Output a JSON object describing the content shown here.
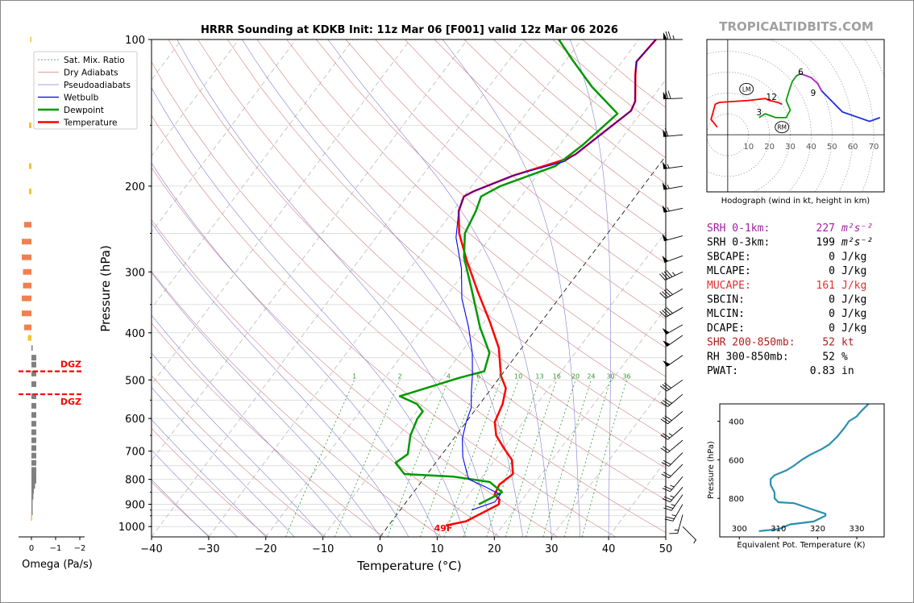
{
  "watermark": "TROPICALTIDBITS.COM",
  "skewt": {
    "title": "HRRR Sounding at KDKB Init: 11z Mar 06 [F001] valid 12z Mar 06 2026",
    "xlabel": "Temperature (°C)",
    "ylabel": "Pressure (hPa)",
    "x_ticks": [
      "−40",
      "−30",
      "−20",
      "−10",
      "0",
      "10",
      "20",
      "30",
      "40",
      "50"
    ],
    "y_ticks": [
      "100",
      "200",
      "300",
      "400",
      "500",
      "600",
      "700",
      "800",
      "900",
      "1000"
    ],
    "surface_label": "49F",
    "mixing_ratio_labels": [
      "1",
      "2",
      "4",
      "6",
      "8",
      "10",
      "13",
      "16",
      "20",
      "24",
      "30",
      "36"
    ],
    "legend": [
      "Sat. Mix. Ratio",
      "Dry Adiabats",
      "Pseudoadiabats",
      "Wetbulb",
      "Dewpoint",
      "Temperature"
    ]
  },
  "colors": {
    "temperature": "#ff0000",
    "dewpoint": "#009900",
    "wetbulb": "#0000ee",
    "dry_adiabat": "#d08080",
    "pseudoadiabat": "#8080d0",
    "mixing_ratio": "#2c9a2c",
    "theta_e": "#2b8fb0",
    "omega_positive": "#f4c430",
    "omega_orange": "#f08050",
    "omega_negative": "#808080",
    "srh1": "#a020a0",
    "mucape": "#e03030",
    "shr": "#b02020"
  },
  "chart_data": [
    {
      "type": "line",
      "title": "HRRR Sounding at KDKB Init: 11z Mar 06 [F001] valid 12z Mar 06 2026",
      "xlabel": "Temperature (°C)",
      "ylabel": "Pressure (hPa)",
      "xlim": [
        -40,
        50
      ],
      "ylim": [
        1050,
        100
      ],
      "yscale": "log",
      "series": [
        {
          "name": "Temperature",
          "points": [
            [
              10,
              995
            ],
            [
              13,
              975
            ],
            [
              16.5,
              900
            ],
            [
              16,
              880
            ],
            [
              14.5,
              860
            ],
            [
              14,
              820
            ],
            [
              15,
              780
            ],
            [
              13,
              730
            ],
            [
              10,
              690
            ],
            [
              7,
              650
            ],
            [
              5,
              610
            ],
            [
              4,
              560
            ],
            [
              2.5,
              520
            ],
            [
              0,
              490
            ],
            [
              -4,
              430
            ],
            [
              -9,
              380
            ],
            [
              -15,
              330
            ],
            [
              -21,
              285
            ],
            [
              -26,
              250
            ],
            [
              -29,
              225
            ],
            [
              -30,
              210
            ],
            [
              -29,
              205
            ],
            [
              -24,
              190
            ],
            [
              -17,
              176
            ],
            [
              -16,
              172
            ],
            [
              -12,
              140
            ],
            [
              -12.5,
              134
            ],
            [
              -16,
              118
            ],
            [
              -17.5,
              111
            ],
            [
              -17,
              100
            ]
          ]
        },
        {
          "name": "Dewpoint",
          "points": [
            [
              13,
              900
            ],
            [
              14.5,
              870
            ],
            [
              15.5,
              850
            ],
            [
              12,
              810
            ],
            [
              5,
              790
            ],
            [
              -4,
              780
            ],
            [
              -7,
              740
            ],
            [
              -6,
              710
            ],
            [
              -8,
              650
            ],
            [
              -9,
              600
            ],
            [
              -9,
              580
            ],
            [
              -11,
              560
            ],
            [
              -15,
              540
            ],
            [
              -7,
              495
            ],
            [
              -3.5,
              480
            ],
            [
              -5,
              440
            ],
            [
              -10,
              390
            ],
            [
              -16,
              330
            ],
            [
              -22,
              280
            ],
            [
              -25,
              250
            ],
            [
              -26,
              225
            ],
            [
              -27,
              210
            ],
            [
              -25,
              200
            ],
            [
              -18,
              182
            ],
            [
              -16,
              165
            ],
            [
              -14,
              142
            ],
            [
              -22,
              125
            ],
            [
              -29,
              110
            ],
            [
              -34,
              100
            ]
          ]
        },
        {
          "name": "Wetbulb",
          "points": [
            [
              12.5,
              925
            ],
            [
              15.5,
              890
            ],
            [
              15.5,
              860
            ],
            [
              12,
              830
            ],
            [
              8,
              800
            ],
            [
              7,
              780
            ],
            [
              4,
              720
            ],
            [
              1.5,
              660
            ],
            [
              0,
              610
            ],
            [
              -1,
              570
            ],
            [
              -3,
              530
            ],
            [
              -5,
              490
            ],
            [
              -8,
              440
            ],
            [
              -12,
              390
            ],
            [
              -17,
              340
            ],
            [
              -21,
              295
            ],
            [
              -26,
              255
            ],
            [
              -29,
              225
            ],
            [
              -30,
              210
            ],
            [
              -29,
              205
            ],
            [
              -24,
              190
            ],
            [
              -17,
              178
            ],
            [
              -16,
              172
            ],
            [
              -12,
              140
            ],
            [
              -12.5,
              134
            ],
            [
              -16,
              118
            ],
            [
              -17.5,
              111
            ],
            [
              -17,
              100
            ]
          ]
        }
      ]
    },
    {
      "type": "line",
      "title": "Hodograph (wind in kt, height in km)",
      "xlim": [
        -10,
        75
      ],
      "ylim": [
        -30,
        50
      ],
      "x_ticks": [
        "10",
        "20",
        "30",
        "40",
        "50",
        "60",
        "70"
      ],
      "height_labels": [
        "3",
        "6",
        "9",
        "12"
      ],
      "motion_labels": [
        "LM",
        "RM"
      ],
      "series": [
        {
          "name": "0-3 km",
          "points": [
            [
              -5,
              4
            ],
            [
              -8,
              8
            ],
            [
              -6,
              16
            ],
            [
              -4,
              17
            ],
            [
              10,
              18
            ],
            [
              18,
              19
            ],
            [
              20,
              18
            ],
            [
              24,
              17
            ],
            [
              26,
              16
            ]
          ]
        },
        {
          "name": "3-6 km",
          "points": [
            [
              15,
              9
            ],
            [
              18,
              11
            ],
            [
              23,
              9
            ],
            [
              28,
              9
            ],
            [
              30,
              13
            ],
            [
              28,
              18
            ],
            [
              30,
              25
            ],
            [
              31,
              28
            ],
            [
              33,
              31
            ],
            [
              35,
              32
            ]
          ]
        },
        {
          "name": "6-9 km",
          "points": [
            [
              35,
              32
            ],
            [
              40,
              30
            ],
            [
              43,
              27
            ],
            [
              45,
              23
            ]
          ]
        },
        {
          "name": "9-12 km",
          "points": [
            [
              45,
              23
            ],
            [
              55,
              12
            ],
            [
              68,
              7
            ],
            [
              73,
              9
            ]
          ]
        }
      ]
    },
    {
      "type": "line",
      "xlabel": "Equivalent Pot. Temperature (K)",
      "ylabel": "Pressure (hPa)",
      "xlim": [
        295,
        337
      ],
      "ylim": [
        1000,
        310
      ],
      "x_ticks": [
        "300",
        "310",
        "320",
        "330"
      ],
      "y_ticks": [
        "400",
        "600",
        "800"
      ],
      "series": [
        {
          "name": "Theta-E",
          "points": [
            [
              305,
              970
            ],
            [
              310,
              960
            ],
            [
              313,
              935
            ],
            [
              319,
              920
            ],
            [
              322,
              890
            ],
            [
              322,
              880
            ],
            [
              319,
              860
            ],
            [
              314,
              825
            ],
            [
              310,
              820
            ],
            [
              309,
              800
            ],
            [
              309,
              770
            ],
            [
              308,
              730
            ],
            [
              308,
              700
            ],
            [
              309,
              680
            ],
            [
              312,
              655
            ],
            [
              314,
              630
            ],
            [
              316,
              600
            ],
            [
              318,
              575
            ],
            [
              321,
              545
            ],
            [
              323,
              520
            ],
            [
              324,
              500
            ],
            [
              325,
              480
            ],
            [
              326,
              455
            ],
            [
              327,
              430
            ],
            [
              328,
              400
            ],
            [
              330,
              375
            ],
            [
              331,
              350
            ],
            [
              332,
              330
            ],
            [
              333,
              310
            ]
          ]
        }
      ]
    },
    {
      "type": "bar",
      "xlabel": "Omega (Pa/s)",
      "x_ticks": [
        "0",
        "−1",
        "−2"
      ],
      "xlim": [
        0,
        -2
      ],
      "dgz_label": "DGZ",
      "dgz_pressures": [
        480,
        535
      ],
      "series": [
        {
          "name": "Omega",
          "points": [
            [
              100,
              0.05
            ],
            [
              150,
              0.1
            ],
            [
              182,
              0.1
            ],
            [
              205,
              0.1
            ],
            [
              240,
              0.3
            ],
            [
              260,
              0.4
            ],
            [
              280,
              0.4
            ],
            [
              300,
              0.35
            ],
            [
              320,
              0.35
            ],
            [
              340,
              0.4
            ],
            [
              365,
              0.4
            ],
            [
              390,
              0.3
            ],
            [
              410,
              0.15
            ],
            [
              430,
              -0.05
            ],
            [
              450,
              -0.2
            ],
            [
              465,
              -0.2
            ],
            [
              485,
              -0.2
            ],
            [
              510,
              -0.2
            ],
            [
              540,
              -0.2
            ],
            [
              565,
              -0.2
            ],
            [
              590,
              -0.2
            ],
            [
              615,
              -0.2
            ],
            [
              640,
              -0.2
            ],
            [
              665,
              -0.2
            ],
            [
              690,
              -0.2
            ],
            [
              715,
              -0.2
            ],
            [
              740,
              -0.2
            ],
            [
              765,
              -0.2
            ],
            [
              785,
              -0.2
            ],
            [
              805,
              -0.2
            ],
            [
              825,
              -0.15
            ],
            [
              845,
              -0.1
            ],
            [
              868,
              -0.08
            ],
            [
              890,
              -0.05
            ],
            [
              910,
              -0.05
            ],
            [
              935,
              -0.03
            ],
            [
              960,
              0.02
            ]
          ]
        }
      ]
    },
    {
      "type": "table",
      "rows": [
        {
          "label": "SRH 0-1km:",
          "value": "227",
          "unit": "m²s⁻²"
        },
        {
          "label": "SRH 0-3km:",
          "value": "199",
          "unit": "m²s⁻²"
        },
        {
          "label": "SBCAPE:",
          "value": "0",
          "unit": "J/kg"
        },
        {
          "label": "MLCAPE:",
          "value": "0",
          "unit": "J/kg"
        },
        {
          "label": "MUCAPE:",
          "value": "161",
          "unit": "J/kg"
        },
        {
          "label": "SBCIN:",
          "value": "0",
          "unit": "J/kg"
        },
        {
          "label": "MLCIN:",
          "value": "0",
          "unit": "J/kg"
        },
        {
          "label": "DCAPE:",
          "value": "0",
          "unit": "J/kg"
        },
        {
          "label": "SHR 200-850mb:",
          "value": "52",
          "unit": "kt"
        },
        {
          "label": "RH 300-850mb:",
          "value": "52",
          "unit": "%"
        },
        {
          "label": "PWAT:",
          "value": "0.83",
          "unit": "in"
        }
      ]
    }
  ],
  "hodograph": {
    "title": "Hodograph (wind in kt, height in km)",
    "x_ticks": [
      "10",
      "20",
      "30",
      "40",
      "50",
      "60",
      "70"
    ],
    "height_labels": [
      "3",
      "6",
      "9",
      "12"
    ],
    "motion_labels": [
      "LM",
      "RM"
    ]
  },
  "thetae": {
    "xlabel": "Equivalent Pot. Temperature (K)",
    "ylabel": "Pressure (hPa)",
    "x_ticks": [
      "300",
      "310",
      "320",
      "330"
    ],
    "y_ticks": [
      "400",
      "600",
      "800"
    ]
  },
  "omega": {
    "xlabel": "Omega (Pa/s)",
    "x_ticks": [
      "0",
      "−1",
      "−2"
    ],
    "dgz_label": "DGZ"
  },
  "winds": [
    {
      "p": 100,
      "dir": 270,
      "spd": 75
    },
    {
      "p": 132,
      "dir": 268,
      "spd": 70
    },
    {
      "p": 157,
      "dir": 265,
      "spd": 60
    },
    {
      "p": 182,
      "dir": 262,
      "spd": 55
    },
    {
      "p": 200,
      "dir": 260,
      "spd": 55
    },
    {
      "p": 222,
      "dir": 258,
      "spd": 55
    },
    {
      "p": 253,
      "dir": 255,
      "spd": 50
    },
    {
      "p": 278,
      "dir": 250,
      "spd": 50
    },
    {
      "p": 300,
      "dir": 245,
      "spd": 45
    },
    {
      "p": 325,
      "dir": 240,
      "spd": 40
    },
    {
      "p": 355,
      "dir": 240,
      "spd": 40
    },
    {
      "p": 385,
      "dir": 240,
      "spd": 50
    },
    {
      "p": 405,
      "dir": 235,
      "spd": 50
    },
    {
      "p": 445,
      "dir": 235,
      "spd": 50
    },
    {
      "p": 500,
      "dir": 235,
      "spd": 30
    },
    {
      "p": 535,
      "dir": 230,
      "spd": 30
    },
    {
      "p": 580,
      "dir": 230,
      "spd": 30
    },
    {
      "p": 625,
      "dir": 230,
      "spd": 25
    },
    {
      "p": 665,
      "dir": 230,
      "spd": 20
    },
    {
      "p": 705,
      "dir": 225,
      "spd": 20
    },
    {
      "p": 745,
      "dir": 225,
      "spd": 20
    },
    {
      "p": 790,
      "dir": 220,
      "spd": 25
    },
    {
      "p": 830,
      "dir": 220,
      "spd": 25
    },
    {
      "p": 860,
      "dir": 215,
      "spd": 25
    },
    {
      "p": 900,
      "dir": 210,
      "spd": 25
    },
    {
      "p": 945,
      "dir": 195,
      "spd": 15
    },
    {
      "p": 1000,
      "dir": 135,
      "spd": 5
    }
  ]
}
